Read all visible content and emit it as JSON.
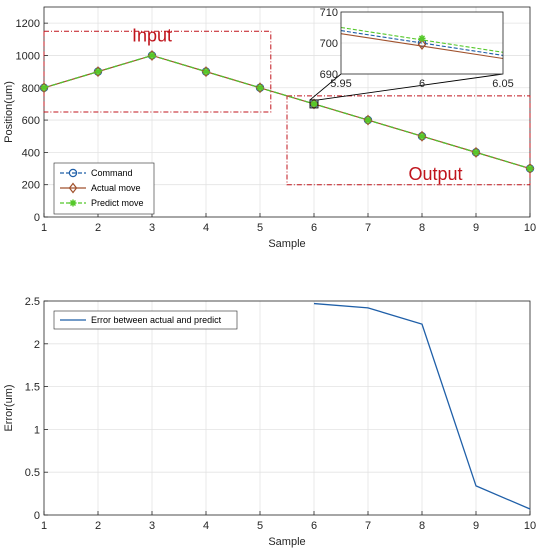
{
  "chart_data": [
    {
      "type": "line",
      "xlabel": "Sample",
      "ylabel": "Position(um)",
      "xlim": [
        1,
        10
      ],
      "ylim": [
        0,
        1300
      ],
      "xticks": [
        1,
        2,
        3,
        4,
        5,
        6,
        7,
        8,
        9,
        10
      ],
      "yticks": [
        0,
        200,
        400,
        600,
        800,
        1000,
        1200
      ],
      "grid": true,
      "legend_position": "bottom-left",
      "x": [
        1,
        2,
        3,
        4,
        5,
        6,
        7,
        8,
        9,
        10
      ],
      "series": [
        {
          "name": "Command",
          "values": [
            800,
            900,
            1000,
            900,
            800,
            700,
            600,
            500,
            400,
            300
          ],
          "color": "#1f5fa8",
          "style": "dashed",
          "marker": "circle"
        },
        {
          "name": "Actual move",
          "values": [
            800,
            900,
            1000,
            900,
            800,
            700,
            600,
            500,
            400,
            300
          ],
          "color": "#a0522d",
          "style": "solid",
          "marker": "diamond"
        },
        {
          "name": "Predict move",
          "values": [
            800,
            900,
            1000,
            900,
            800,
            700,
            600,
            500,
            400,
            300
          ],
          "color": "#55c82a",
          "style": "dashed",
          "marker": "asterisk"
        }
      ],
      "annotations": [
        {
          "text": "Input",
          "x_range": [
            1,
            5.2
          ],
          "y_range": [
            650,
            1150
          ],
          "color": "#c0141c"
        },
        {
          "text": "Output",
          "x_range": [
            5.5,
            10
          ],
          "y_range": [
            200,
            750
          ],
          "color": "#c0141c"
        }
      ],
      "inset": {
        "xlim": [
          5.95,
          6.05
        ],
        "ylim": [
          690,
          710
        ],
        "xticks": [
          5.95,
          6,
          6.05
        ],
        "yticks": [
          690,
          700,
          710
        ],
        "series": [
          {
            "name": "Command",
            "x": [
              5.95,
              6,
              6.05
            ],
            "values": [
              704,
              700,
              696
            ]
          },
          {
            "name": "Actual move",
            "x": [
              5.95,
              6,
              6.05
            ],
            "values": [
              703,
              699,
              695
            ]
          },
          {
            "name": "Predict move",
            "x": [
              5.95,
              6,
              6.05
            ],
            "values": [
              705,
              701,
              697
            ]
          }
        ],
        "markers": {
          "Command": 700,
          "Actual move": 699.5,
          "Predict move": 701.5
        }
      }
    },
    {
      "type": "line",
      "xlabel": "Sample",
      "ylabel": "Error(um)",
      "xlim": [
        1,
        10
      ],
      "ylim": [
        0,
        2.5
      ],
      "xticks": [
        1,
        2,
        3,
        4,
        5,
        6,
        7,
        8,
        9,
        10
      ],
      "yticks": [
        0,
        0.5,
        1,
        1.5,
        2,
        2.5
      ],
      "grid": true,
      "legend_position": "top-left",
      "series": [
        {
          "name": "Error between actual and predict",
          "x": [
            6,
            7,
            8,
            9,
            10
          ],
          "values": [
            2.47,
            2.42,
            2.23,
            0.34,
            0.07
          ],
          "color": "#1f5fa8"
        }
      ]
    }
  ]
}
